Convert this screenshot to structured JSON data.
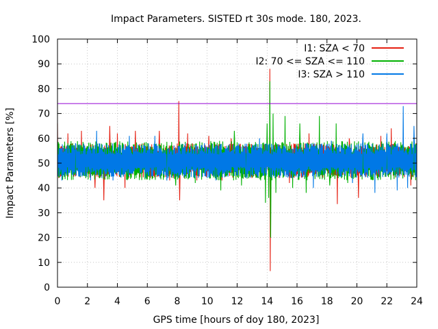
{
  "chart_data": {
    "type": "line",
    "title": "Impact Parameters. SISTED rt 30s mode. 180, 2023.",
    "xlabel": "GPS time [hours of doy 180, 2023]",
    "ylabel": "Impact Parameters [%]",
    "xlim": [
      0,
      24
    ],
    "ylim": [
      0,
      100
    ],
    "xticks": [
      0,
      2,
      4,
      6,
      8,
      10,
      12,
      14,
      16,
      18,
      20,
      22,
      24
    ],
    "yticks": [
      0,
      10,
      20,
      30,
      40,
      50,
      60,
      70,
      80,
      90,
      100
    ],
    "grid": true,
    "legend_position": "top-right",
    "threshold": {
      "value": 74,
      "color": "#9400d3"
    },
    "series": [
      {
        "name": "I1: SZA < 70",
        "color": "#e51e10",
        "band": [
          44,
          58
        ],
        "spikes": [
          [
            0.0,
            66
          ],
          [
            0.7,
            62
          ],
          [
            1.6,
            63
          ],
          [
            2.5,
            40
          ],
          [
            3.1,
            35
          ],
          [
            3.5,
            65
          ],
          [
            4.0,
            62
          ],
          [
            4.5,
            40
          ],
          [
            5.2,
            63
          ],
          [
            6.2,
            44
          ],
          [
            6.8,
            63
          ],
          [
            7.5,
            43
          ],
          [
            8.1,
            75
          ],
          [
            8.15,
            35
          ],
          [
            8.7,
            62
          ],
          [
            9.3,
            43
          ],
          [
            10.1,
            61
          ],
          [
            11.0,
            43
          ],
          [
            11.6,
            60
          ],
          [
            13.0,
            44
          ],
          [
            14.2,
            88
          ],
          [
            14.22,
            6.5
          ],
          [
            15.5,
            42
          ],
          [
            16.8,
            62
          ],
          [
            18.7,
            33.5
          ],
          [
            19.5,
            60
          ],
          [
            20.1,
            36
          ],
          [
            21.6,
            61
          ],
          [
            22.3,
            64
          ],
          [
            23.6,
            41
          ]
        ]
      },
      {
        "name": "I2: 70 <= SZA <= 110",
        "color": "#00b000",
        "band": [
          43,
          59
        ],
        "spikes": [
          [
            13.9,
            34
          ],
          [
            14.0,
            66
          ],
          [
            14.1,
            36
          ],
          [
            14.2,
            83
          ],
          [
            14.25,
            20
          ],
          [
            14.4,
            70
          ],
          [
            14.6,
            38
          ],
          [
            15.2,
            69
          ],
          [
            15.7,
            40
          ],
          [
            16.2,
            66
          ],
          [
            16.6,
            38
          ],
          [
            17.5,
            69
          ],
          [
            18.2,
            41
          ],
          [
            18.6,
            66
          ],
          [
            19.4,
            42
          ],
          [
            10.9,
            39
          ],
          [
            12.3,
            41
          ],
          [
            7.9,
            41
          ],
          [
            9.2,
            42
          ],
          [
            11.8,
            63
          ]
        ]
      },
      {
        "name": "I3: SZA > 110",
        "color": "#0078e6",
        "band": [
          44,
          58
        ],
        "spikes": [
          [
            0.3,
            43
          ],
          [
            1.2,
            58
          ],
          [
            2.2,
            43
          ],
          [
            2.6,
            63
          ],
          [
            3.7,
            43
          ],
          [
            4.8,
            61
          ],
          [
            5.9,
            44
          ],
          [
            6.5,
            61
          ],
          [
            7.3,
            43
          ],
          [
            9.8,
            58
          ],
          [
            10.6,
            43
          ],
          [
            12.6,
            44
          ],
          [
            13.5,
            60
          ],
          [
            17.1,
            40
          ],
          [
            18.3,
            59
          ],
          [
            19.7,
            42
          ],
          [
            20.4,
            62
          ],
          [
            21.2,
            38
          ],
          [
            22.0,
            62
          ],
          [
            22.7,
            39
          ],
          [
            23.1,
            73
          ],
          [
            23.4,
            40
          ],
          [
            23.8,
            65
          ]
        ]
      }
    ]
  }
}
